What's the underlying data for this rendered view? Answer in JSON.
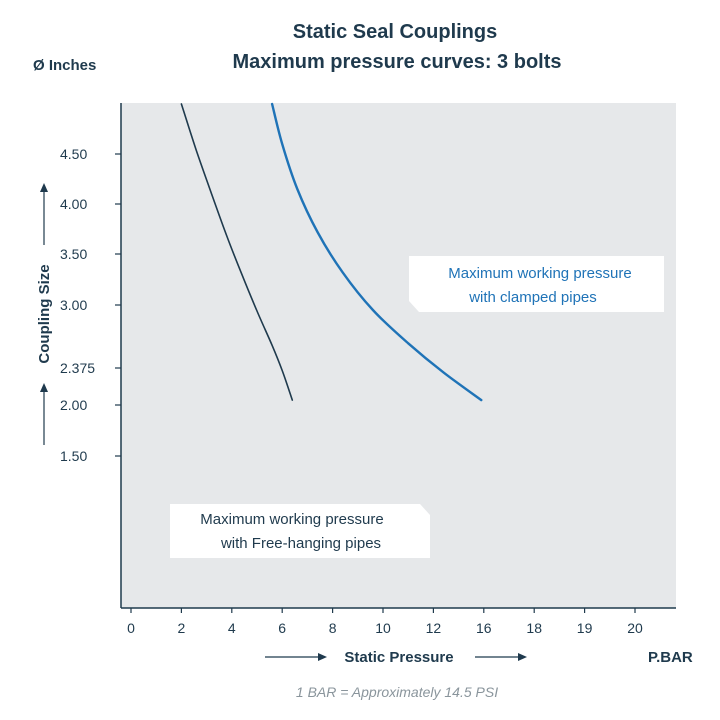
{
  "title": "Static Seal Couplings",
  "subtitle": "Maximum pressure curves: 3 bolts",
  "y_unit": "Ø Inches",
  "x_unit": "P.BAR",
  "footnote": "1 BAR = Approximately 14.5 PSI",
  "colors": {
    "plot_bg": "#e6e8ea",
    "axis": "#1f3a4d",
    "series_free": "#1f3a4d",
    "series_clamped": "#1f73b7"
  },
  "chart_data": {
    "type": "line",
    "xlabel": "Static Pressure",
    "ylabel": "Coupling Size",
    "x_ticks": [
      "0",
      "2",
      "4",
      "6",
      "8",
      "10",
      "12",
      "16",
      "18",
      "19",
      "20"
    ],
    "y_ticks": [
      "1.50",
      "2.00",
      "2.375",
      "3.00",
      "3.50",
      "4.00",
      "4.50"
    ],
    "grid": false,
    "series": [
      {
        "name": "Maximum working pressure with Free-hanging pipes",
        "label_lines": [
          "Maximum working pressure",
          "with Free-hanging pipes"
        ],
        "x": [
          2.0,
          2.6,
          3.2,
          3.8,
          4.4,
          5.0,
          5.6,
          6.0,
          6.4
        ],
        "y": [
          5.0,
          4.53,
          4.1,
          3.68,
          3.3,
          2.94,
          2.6,
          2.35,
          2.05
        ],
        "color": "#1f3a4d"
      },
      {
        "name": "Maximum working pressure with clamped pipes",
        "label_lines": [
          "Maximum working pressure",
          "with clamped pipes"
        ],
        "x": [
          5.6,
          6.0,
          6.6,
          7.4,
          8.4,
          9.6,
          11.0,
          12.4,
          13.9
        ],
        "y": [
          5.0,
          4.6,
          4.15,
          3.72,
          3.32,
          2.95,
          2.62,
          2.33,
          2.05
        ],
        "color": "#1f73b7"
      }
    ]
  }
}
